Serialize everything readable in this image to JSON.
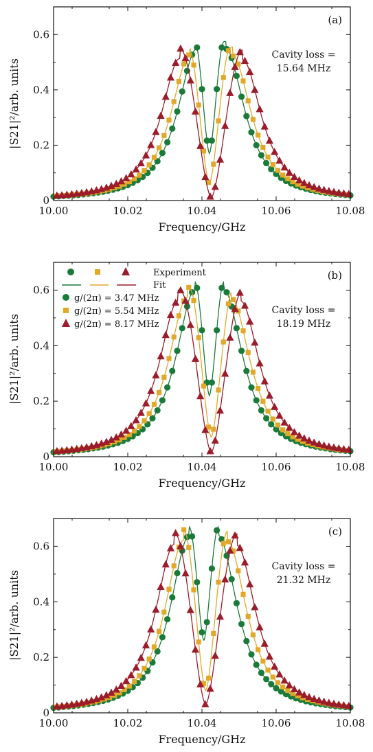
{
  "colors": {
    "green": "#1a7a3a",
    "yellow": "#e0a92a",
    "red": "#9b1c2a"
  },
  "legend": {
    "experiment_label": "Experiment",
    "fit_label": "Fit",
    "series_labels": [
      "g/(2π) = 3.47 MHz",
      "g/(2π) = 5.54 MHz",
      "g/(2π) = 8.17 MHz"
    ]
  },
  "chart_data": [
    {
      "type": "scatter",
      "panel_label": "(a)",
      "xlabel": "Frequency/GHz",
      "ylabel": "|S21|²/arb. units",
      "xlim": [
        10.0,
        10.08
      ],
      "ylim": [
        0,
        0.7
      ],
      "xticks": [
        "10.00",
        "10.02",
        "10.04",
        "10.06",
        "10.08"
      ],
      "yticks": [
        "0",
        "0.2",
        "0.4",
        "0.6"
      ],
      "annotation_lines": [
        "Cavity loss =",
        "15.64 MHz"
      ],
      "series": [
        {
          "g": 3.47,
          "color": "#1a7a3a",
          "marker": "circle",
          "fit": "line",
          "peaks": [
            [
              10.0385,
              0.575
            ],
            [
              10.0465,
              0.575
            ]
          ],
          "dip": [
            10.042,
            0.17
          ]
        },
        {
          "g": 5.54,
          "color": "#e0a92a",
          "marker": "square",
          "fit": "line",
          "peaks": [
            [
              10.0367,
              0.56
            ],
            [
              10.0483,
              0.555
            ]
          ],
          "dip": [
            10.042,
            0.06
          ]
        },
        {
          "g": 8.17,
          "color": "#9b1c2a",
          "marker": "triangle",
          "fit": "line",
          "peaks": [
            [
              10.034,
              0.55
            ],
            [
              10.051,
              0.545
            ]
          ],
          "dip": [
            10.0425,
            0.01
          ]
        }
      ]
    },
    {
      "type": "scatter",
      "panel_label": "(b)",
      "xlabel": "Frequency/GHz",
      "ylabel": "|S21|²/arb. units",
      "xlim": [
        10.0,
        10.08
      ],
      "ylim": [
        0,
        0.7
      ],
      "xticks": [
        "10.00",
        "10.02",
        "10.04",
        "10.06",
        "10.08"
      ],
      "yticks": [
        "0",
        "0.2",
        "0.4",
        "0.6"
      ],
      "annotation_lines": [
        "Cavity loss =",
        "18.19 MHz"
      ],
      "series": [
        {
          "g": 3.47,
          "color": "#1a7a3a",
          "marker": "circle",
          "fit": "line",
          "peaks": [
            [
              10.038,
              0.63
            ],
            [
              10.046,
              0.63
            ]
          ],
          "dip": [
            10.042,
            0.22
          ]
        },
        {
          "g": 5.54,
          "color": "#e0a92a",
          "marker": "square",
          "fit": "line",
          "peaks": [
            [
              10.036,
              0.61
            ],
            [
              10.048,
              0.605
            ]
          ],
          "dip": [
            10.0425,
            0.07
          ]
        },
        {
          "g": 8.17,
          "color": "#9b1c2a",
          "marker": "triangle",
          "fit": "line",
          "peaks": [
            [
              10.0335,
              0.6
            ],
            [
              10.0505,
              0.6
            ]
          ],
          "dip": [
            10.0425,
            0.015
          ]
        }
      ]
    },
    {
      "type": "scatter",
      "panel_label": "(c)",
      "xlabel": "Frequency/GHz",
      "ylabel": "|S21|²/arb. units",
      "xlim": [
        10.0,
        10.08
      ],
      "ylim": [
        0,
        0.7
      ],
      "xticks": [
        "10.00",
        "10.02",
        "10.04",
        "10.06",
        "10.08"
      ],
      "yticks": [
        "0",
        "0.2",
        "0.4",
        "0.6"
      ],
      "annotation_lines": [
        "Cavity loss =",
        "21.32 MHz"
      ],
      "series": [
        {
          "g": 3.47,
          "color": "#1a7a3a",
          "marker": "circle",
          "fit": "line",
          "peaks": [
            [
              10.0365,
              0.67
            ],
            [
              10.0445,
              0.67
            ]
          ],
          "dip": [
            10.0405,
            0.26
          ]
        },
        {
          "g": 5.54,
          "color": "#e0a92a",
          "marker": "square",
          "fit": "line",
          "peaks": [
            [
              10.035,
              0.66
            ],
            [
              10.047,
              0.655
            ]
          ],
          "dip": [
            10.041,
            0.08
          ]
        },
        {
          "g": 8.17,
          "color": "#9b1c2a",
          "marker": "triangle",
          "fit": "line",
          "peaks": [
            [
              10.0325,
              0.65
            ],
            [
              10.0495,
              0.645
            ]
          ],
          "dip": [
            10.041,
            0.03
          ]
        }
      ]
    }
  ]
}
